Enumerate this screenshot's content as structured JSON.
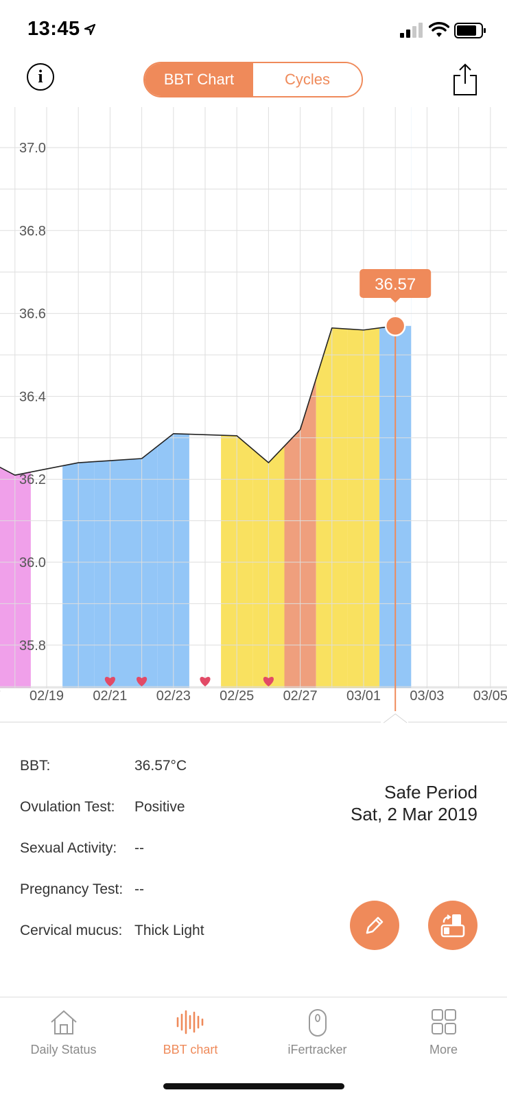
{
  "status_bar": {
    "time": "13:45"
  },
  "nav": {
    "info_label": "i",
    "tabs": [
      {
        "label": "BBT Chart",
        "active": true
      },
      {
        "label": "Cycles",
        "active": false
      }
    ]
  },
  "colors": {
    "accent": "#ef8a5a",
    "menstruation": "#f0a0ea",
    "safe": "#93c6f7",
    "fertile": "#f9e160",
    "ovulation": "#ef9f7d",
    "heart": "#e24a66"
  },
  "chart_data": {
    "type": "line",
    "title": "",
    "xlabel": "",
    "ylabel": "",
    "ylim": [
      35.7,
      37.1
    ],
    "y_ticks": [
      "37.0",
      "36.8",
      "36.6",
      "36.4",
      "36.2",
      "36.0",
      "35.8"
    ],
    "x_ticks": [
      "02/19",
      "02/21",
      "02/23",
      "02/25",
      "02/27",
      "03/01",
      "03/03",
      "03/05"
    ],
    "series": [
      {
        "points": [
          {
            "date": "02/17",
            "value": 36.25
          },
          {
            "date": "02/18",
            "value": 36.21
          },
          {
            "date": "02/20",
            "value": 36.24
          },
          {
            "date": "02/21",
            "value": 36.245
          },
          {
            "date": "02/22",
            "value": 36.25
          },
          {
            "date": "02/23",
            "value": 36.31
          },
          {
            "date": "02/25",
            "value": 36.305
          },
          {
            "date": "02/26",
            "value": 36.24
          },
          {
            "date": "02/27",
            "value": 36.32
          },
          {
            "date": "02/28",
            "value": 36.565
          },
          {
            "date": "03/01",
            "value": 36.56
          },
          {
            "date": "03/02",
            "value": 36.57
          }
        ]
      }
    ],
    "period_bands": [
      {
        "phase": "menstruation",
        "dates": [
          "02/17",
          "02/18"
        ]
      },
      {
        "phase": "safe",
        "dates": [
          "02/20",
          "02/21",
          "02/22",
          "02/23"
        ]
      },
      {
        "phase": "fertile",
        "dates": [
          "02/25",
          "02/26"
        ]
      },
      {
        "phase": "ovulation",
        "dates": [
          "02/27"
        ]
      },
      {
        "phase": "fertile",
        "dates": [
          "02/28",
          "03/01"
        ]
      },
      {
        "phase": "safe",
        "dates": [
          "03/02"
        ]
      }
    ],
    "sexual_activity_dates": [
      "02/21",
      "02/22",
      "02/24",
      "02/26"
    ],
    "selected": {
      "date": "03/02",
      "value": 36.57,
      "label": "36.57"
    }
  },
  "details": {
    "rows": [
      {
        "label": "BBT:",
        "value": "36.57°C"
      },
      {
        "label": "Ovulation Test:",
        "value": "Positive"
      },
      {
        "label": "Sexual Activity:",
        "value": "--"
      },
      {
        "label": "Pregnancy Test:",
        "value": "--"
      },
      {
        "label": "Cervical mucus:",
        "value": "Thick Light"
      }
    ],
    "period_name": "Safe Period",
    "date": "Sat, 2 Mar 2019"
  },
  "tabbar": {
    "tabs": [
      {
        "label": "Daily Status",
        "icon": "home-icon",
        "active": false
      },
      {
        "label": "BBT chart",
        "icon": "waveform-icon",
        "active": true
      },
      {
        "label": "iFertracker",
        "icon": "thermometer-device-icon",
        "active": false
      },
      {
        "label": "More",
        "icon": "grid-icon",
        "active": false
      }
    ]
  }
}
